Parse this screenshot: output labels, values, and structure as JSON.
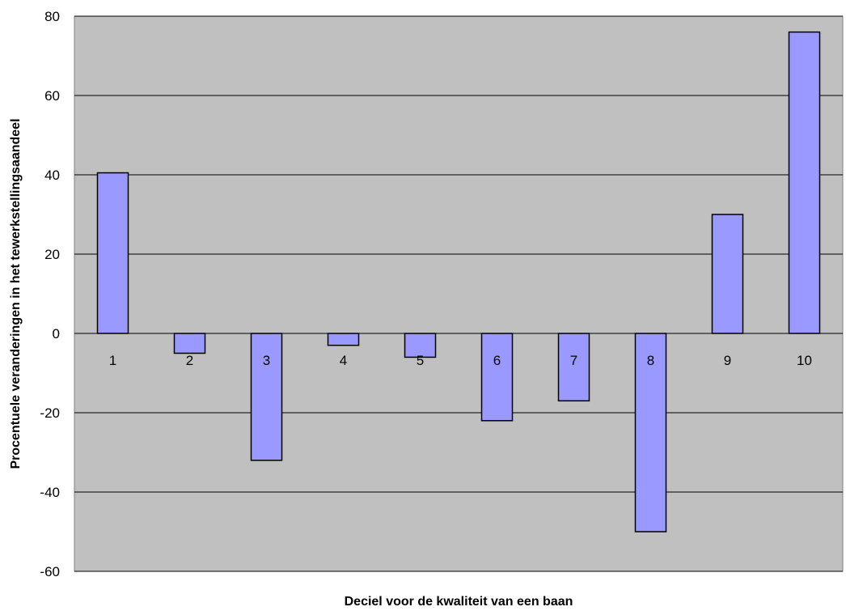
{
  "chart_data": {
    "type": "bar",
    "title": "",
    "xlabel": "Deciel voor de kwaliteit van een baan",
    "ylabel": "Procentuele veranderingen in het tewerkstellingsaandeel",
    "categories": [
      "1",
      "2",
      "3",
      "4",
      "5",
      "6",
      "7",
      "8",
      "9",
      "10"
    ],
    "values": [
      40.5,
      -5,
      -32,
      -3,
      -6,
      -22,
      -17,
      -50,
      30,
      76
    ],
    "ylim": [
      -60,
      80
    ],
    "yticks": [
      "80",
      "60",
      "40",
      "20",
      "0",
      "-20",
      "-40",
      "-60"
    ],
    "grid": true,
    "legend": "none",
    "colors": {
      "bar_fill": "#9999ff",
      "bar_stroke": "#000000",
      "plot_bg": "#c0c0c0",
      "grid": "#000000"
    }
  }
}
